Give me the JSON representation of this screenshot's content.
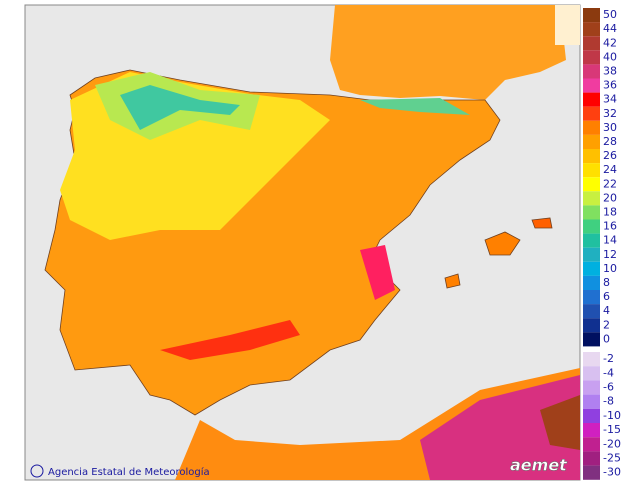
{
  "credit": "Agencia Estatal de Meteorología",
  "logo": "aemet",
  "legend": {
    "positive": [
      {
        "value": 50,
        "color": "#8b3a0f"
      },
      {
        "value": 44,
        "color": "#a0401a"
      },
      {
        "value": 42,
        "color": "#b03a30"
      },
      {
        "value": 40,
        "color": "#c03848"
      },
      {
        "value": 38,
        "color": "#d83878"
      },
      {
        "value": 36,
        "color": "#f03ca0"
      },
      {
        "value": 34,
        "color": "#ff0000"
      },
      {
        "value": 32,
        "color": "#ff4010"
      },
      {
        "value": 30,
        "color": "#ff8000"
      },
      {
        "value": 28,
        "color": "#ffa000"
      },
      {
        "value": 26,
        "color": "#ffc000"
      },
      {
        "value": 24,
        "color": "#ffe000"
      },
      {
        "value": 22,
        "color": "#ffff00"
      },
      {
        "value": 20,
        "color": "#c8f040"
      },
      {
        "value": 18,
        "color": "#80e060"
      },
      {
        "value": 16,
        "color": "#40d080"
      },
      {
        "value": 14,
        "color": "#20c0a0"
      },
      {
        "value": 12,
        "color": "#20b0c0"
      },
      {
        "value": 10,
        "color": "#00b0e0"
      },
      {
        "value": 8,
        "color": "#1090e0"
      },
      {
        "value": 6,
        "color": "#2070d0"
      },
      {
        "value": 4,
        "color": "#2050b0"
      },
      {
        "value": 2,
        "color": "#103090"
      },
      {
        "value": 0,
        "color": "#001060"
      }
    ],
    "negative": [
      {
        "value": -2,
        "color": "#e8d8f0"
      },
      {
        "value": -4,
        "color": "#d8c0f0"
      },
      {
        "value": -6,
        "color": "#c8a0f0"
      },
      {
        "value": -8,
        "color": "#b080f0"
      },
      {
        "value": -10,
        "color": "#9040e0"
      },
      {
        "value": -15,
        "color": "#d020c0"
      },
      {
        "value": -20,
        "color": "#c02090"
      },
      {
        "value": -25,
        "color": "#a02080"
      },
      {
        "value": -30,
        "color": "#803080"
      }
    ]
  }
}
